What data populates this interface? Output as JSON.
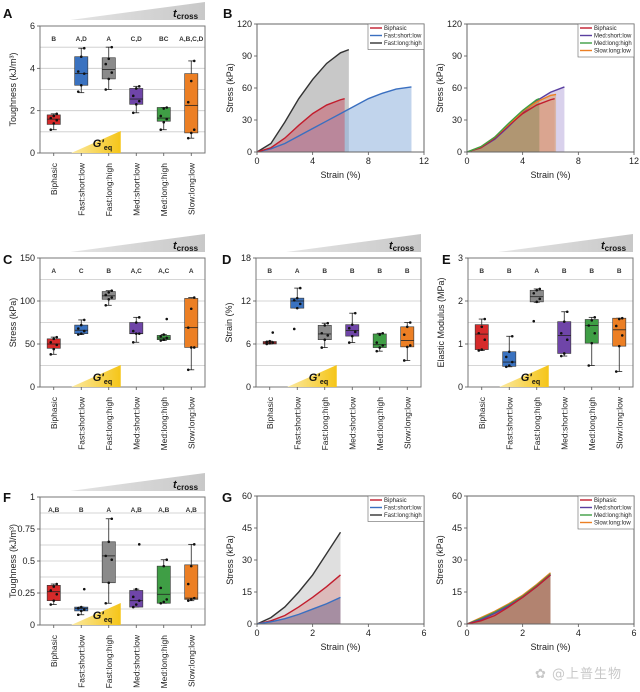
{
  "watermark": "✿ @上普生物",
  "annotations": {
    "tcross_main": "t",
    "tcross_sub": "cross",
    "geq_main": "G'",
    "geq_sub": "eq"
  },
  "colors": {
    "Biphasic": "#d62a2a",
    "Fast:short:low": "#3a72c0",
    "Fast:long:high": "#8a8a8a",
    "Med:short:low": "#6f45a8",
    "Med:long:high": "#3f9e45",
    "Slow:long:low": "#ec7f24"
  },
  "chart_data": [
    {
      "id": "A",
      "type": "box",
      "ylabel": "Toughness (kJ/m³)",
      "ylim": [
        0,
        6
      ],
      "yticks": [
        0,
        2,
        4,
        6
      ],
      "gridlines": [
        1,
        2,
        3,
        4,
        5
      ],
      "categories": [
        "Biphasic",
        "Fast:short:low",
        "Fast:long:high",
        "Med:short:low",
        "Med:long:high",
        "Slow:long:low"
      ],
      "significance": [
        "B",
        "A,D",
        "A",
        "C,D",
        "BC",
        "A,B,C,D"
      ],
      "boxes": [
        {
          "min": 1.1,
          "q1": 1.35,
          "median": 1.6,
          "q3": 1.8,
          "max": 1.85,
          "points": [
            1.1,
            1.4,
            1.55,
            1.65,
            1.75,
            1.85
          ]
        },
        {
          "min": 2.85,
          "q1": 3.2,
          "median": 3.75,
          "q3": 4.55,
          "max": 4.95,
          "points": [
            2.9,
            3.2,
            3.75,
            3.85,
            4.55,
            4.95
          ]
        },
        {
          "min": 3.0,
          "q1": 3.5,
          "median": 3.95,
          "q3": 4.5,
          "max": 5.0,
          "points": [
            3.0,
            3.5,
            3.8,
            4.2,
            4.45,
            5.0
          ]
        },
        {
          "min": 1.9,
          "q1": 2.3,
          "median": 2.55,
          "q3": 3.05,
          "max": 3.15,
          "points": [
            1.9,
            2.3,
            2.45,
            2.7,
            3.05,
            3.15
          ]
        },
        {
          "min": 1.1,
          "q1": 1.5,
          "median": 1.65,
          "q3": 2.15,
          "max": 2.15,
          "points": [
            1.1,
            1.45,
            1.6,
            1.75,
            2.1,
            2.15
          ]
        },
        {
          "min": 0.7,
          "q1": 0.95,
          "median": 2.25,
          "q3": 3.75,
          "max": 4.35,
          "points": [
            0.7,
            0.95,
            1.1,
            2.4,
            3.4,
            4.35
          ]
        }
      ]
    },
    {
      "id": "B",
      "type": "area",
      "xlabel": "Strain (%)",
      "ylabel": "Stress (kPa)",
      "xlim": [
        0,
        12
      ],
      "ylim": [
        0,
        120
      ],
      "xticks": [
        0,
        4,
        8,
        12
      ],
      "yticks": [
        0,
        30,
        60,
        90,
        120
      ],
      "legend_position": "top-right",
      "series": [
        {
          "name": "Fast:long:high",
          "color": "#333333",
          "fill": "#9a9a9a",
          "x": [
            0,
            1,
            2,
            3,
            4,
            5,
            6,
            6.6
          ],
          "y": [
            0,
            8,
            28,
            50,
            68,
            83,
            93,
            96
          ]
        },
        {
          "name": "Fast:short:low",
          "color": "#3a6fc0",
          "fill": "#8eb0dc",
          "x": [
            0,
            1,
            2,
            3,
            4,
            5,
            6,
            7,
            8,
            9,
            10,
            11.1
          ],
          "y": [
            0,
            3,
            8,
            15,
            22,
            29,
            36,
            43,
            50,
            55,
            59,
            61
          ]
        },
        {
          "name": "Biphasic",
          "color": "#c21d2d",
          "fill": "#c95c6e",
          "x": [
            0,
            1,
            2,
            3,
            4,
            5,
            6,
            6.3
          ],
          "y": [
            0,
            4,
            13,
            25,
            36,
            44,
            49,
            50
          ]
        }
      ],
      "legend": [
        "Biphasic",
        "Fast:short:low",
        "Fast:long:high"
      ]
    },
    {
      "id": "B2",
      "type": "area",
      "xlabel": "Strain (%)",
      "ylabel": "Stress (kPa)",
      "xlim": [
        0,
        12
      ],
      "ylim": [
        0,
        120
      ],
      "xticks": [
        0,
        4,
        8,
        12
      ],
      "yticks": [
        0,
        30,
        60,
        90,
        120
      ],
      "legend_position": "top-right",
      "series": [
        {
          "name": "Med:short:low",
          "color": "#5a3fa0",
          "fill": "#b9acdc",
          "x": [
            0,
            1,
            2,
            3,
            4,
            5,
            6,
            7
          ],
          "y": [
            0,
            4,
            12,
            24,
            37,
            48,
            56,
            61
          ]
        },
        {
          "name": "Biphasic",
          "color": "#c21d2d",
          "fill": "#dd8a90",
          "x": [
            0,
            1,
            2,
            3,
            4,
            5,
            6,
            6.3
          ],
          "y": [
            0,
            4,
            13,
            25,
            36,
            44,
            49,
            50
          ]
        },
        {
          "name": "Slow:long:low",
          "color": "#ec7f24",
          "fill": "#d8a070",
          "x": [
            0,
            1,
            2,
            3,
            4,
            5,
            6,
            6.4
          ],
          "y": [
            0,
            5,
            14,
            26,
            38,
            47,
            53,
            54
          ]
        },
        {
          "name": "Med:long:high",
          "color": "#3f9e45",
          "fill": "#8e8a5a",
          "x": [
            0,
            1,
            2,
            3,
            4,
            5,
            5.2
          ],
          "y": [
            0,
            5,
            14,
            27,
            39,
            49,
            50
          ]
        }
      ],
      "legend": [
        "Biphasic",
        "Med:short:low",
        "Med:long:high",
        "Slow:long:low"
      ]
    },
    {
      "id": "C",
      "type": "box",
      "ylabel": "Stress (kPa)",
      "ylim": [
        0,
        150
      ],
      "yticks": [
        0,
        50,
        100,
        150
      ],
      "gridlines": [
        25,
        50,
        75,
        100,
        125
      ],
      "categories": [
        "Biphasic",
        "Fast:short:low",
        "Fast:long:high",
        "Med:short:low",
        "Med:long:high",
        "Slow:long:low"
      ],
      "significance": [
        "A",
        "C",
        "B",
        "A,C",
        "A,C",
        "A"
      ],
      "boxes": [
        {
          "min": 38,
          "q1": 45,
          "median": 50,
          "q3": 56,
          "max": 58,
          "points": [
            38,
            44,
            49,
            52,
            56,
            58
          ]
        },
        {
          "min": 61,
          "q1": 62,
          "median": 66,
          "q3": 72,
          "max": 78,
          "points": [
            61,
            62,
            65,
            68,
            72,
            78
          ]
        },
        {
          "min": 95,
          "q1": 102,
          "median": 106,
          "q3": 111,
          "max": 112,
          "points": [
            95,
            102,
            104,
            107,
            110,
            112
          ]
        },
        {
          "min": 52,
          "q1": 62,
          "median": 62,
          "q3": 75,
          "max": 81,
          "points": [
            52,
            62,
            62,
            65,
            75,
            81
          ]
        },
        {
          "min": 54,
          "q1": 55,
          "median": 57,
          "q3": 60,
          "max": 61,
          "points": [
            54,
            55,
            57,
            59,
            61,
            79
          ]
        },
        {
          "min": 20,
          "q1": 46,
          "median": 69,
          "q3": 103,
          "max": 104,
          "points": [
            20,
            46,
            46,
            69,
            91,
            104
          ]
        }
      ]
    },
    {
      "id": "D",
      "type": "box",
      "ylabel": "Strain (%)",
      "ylim": [
        0,
        18
      ],
      "yticks": [
        0,
        6,
        12,
        18
      ],
      "gridlines": [
        3,
        6,
        9,
        12,
        15
      ],
      "categories": [
        "Biphasic",
        "Fast:short:low",
        "Fast:long:high",
        "Med:short:low",
        "Med:long:high",
        "Slow:long:low"
      ],
      "significance": [
        "B",
        "A",
        "B",
        "B",
        "B",
        "B"
      ],
      "boxes": [
        {
          "min": 6.0,
          "q1": 6.0,
          "median": 6.15,
          "q3": 6.35,
          "max": 6.4,
          "points": [
            6.0,
            6.1,
            6.2,
            6.3,
            6.4,
            7.6
          ]
        },
        {
          "min": 11.0,
          "q1": 11.0,
          "median": 12.0,
          "q3": 12.4,
          "max": 13.8,
          "points": [
            8.1,
            11.0,
            11.6,
            12.1,
            12.4,
            13.8
          ]
        },
        {
          "min": 5.5,
          "q1": 6.6,
          "median": 7.4,
          "q3": 8.6,
          "max": 8.9,
          "points": [
            5.5,
            6.6,
            7.2,
            7.5,
            8.6,
            8.9
          ]
        },
        {
          "min": 6.2,
          "q1": 7.1,
          "median": 7.9,
          "q3": 8.7,
          "max": 10.3,
          "points": [
            6.2,
            7.1,
            7.7,
            8.2,
            8.7,
            10.3
          ]
        },
        {
          "min": 5.0,
          "q1": 5.5,
          "median": 5.9,
          "q3": 7.4,
          "max": 7.5,
          "points": [
            5.0,
            5.5,
            5.8,
            6.2,
            7.3,
            7.5
          ]
        },
        {
          "min": 3.7,
          "q1": 5.6,
          "median": 6.5,
          "q3": 8.4,
          "max": 9.0,
          "points": [
            3.7,
            5.6,
            5.8,
            7.3,
            8.4,
            9.0
          ]
        }
      ]
    },
    {
      "id": "E",
      "type": "box",
      "ylabel": "Elastic Modulus (MPa)",
      "ylim": [
        0,
        3
      ],
      "yticks": [
        0,
        1,
        2,
        3
      ],
      "gridlines": [
        0.5,
        1,
        1.5,
        2,
        2.5
      ],
      "categories": [
        "Biphasic",
        "Fast:short:low",
        "Fast:long:high",
        "Med:short:low",
        "Med:long:high",
        "Slow:long:low"
      ],
      "significance": [
        "B",
        "B",
        "A",
        "B",
        "B",
        "B"
      ],
      "boxes": [
        {
          "min": 0.85,
          "q1": 0.87,
          "median": 1.23,
          "q3": 1.45,
          "max": 1.58,
          "points": [
            0.85,
            0.87,
            1.1,
            1.25,
            1.4,
            1.58
          ]
        },
        {
          "min": 0.47,
          "q1": 0.48,
          "median": 0.58,
          "q3": 0.82,
          "max": 1.18,
          "points": [
            0.47,
            0.5,
            0.58,
            0.7,
            0.82,
            1.18
          ]
        },
        {
          "min": 1.97,
          "q1": 1.98,
          "median": 2.1,
          "q3": 2.25,
          "max": 2.28,
          "points": [
            1.53,
            1.98,
            2.05,
            2.18,
            2.25,
            2.28
          ]
        },
        {
          "min": 0.72,
          "q1": 0.78,
          "median": 1.2,
          "q3": 1.52,
          "max": 1.75,
          "points": [
            0.72,
            0.78,
            1.1,
            1.25,
            1.52,
            1.75
          ]
        },
        {
          "min": 0.5,
          "q1": 1.02,
          "median": 1.43,
          "q3": 1.57,
          "max": 1.62,
          "points": [
            0.5,
            1.02,
            1.25,
            1.43,
            1.55,
            1.62
          ]
        },
        {
          "min": 0.36,
          "q1": 0.95,
          "median": 1.33,
          "q3": 1.6,
          "max": 1.6,
          "points": [
            0.36,
            0.95,
            1.2,
            1.42,
            1.58,
            1.6
          ]
        }
      ]
    },
    {
      "id": "F",
      "type": "box",
      "ylabel": "Toughness (kJ/m³)",
      "ylim": [
        0,
        1
      ],
      "yticks": [
        0,
        0.25,
        0.5,
        0.75,
        1
      ],
      "gridlines": [
        0.125,
        0.25,
        0.375,
        0.5,
        0.625,
        0.75,
        0.875
      ],
      "categories": [
        "Biphasic",
        "Fast:short:low",
        "Fast:long:high",
        "Med:short:low",
        "Med:long:high",
        "Slow:long:low"
      ],
      "significance": [
        "A,B",
        "B",
        "A",
        "A,B",
        "A,B",
        "A,B"
      ],
      "boxes": [
        {
          "min": 0.16,
          "q1": 0.19,
          "median": 0.26,
          "q3": 0.31,
          "max": 0.32,
          "points": [
            0.16,
            0.19,
            0.24,
            0.27,
            0.3,
            0.32
          ]
        },
        {
          "min": 0.08,
          "q1": 0.11,
          "median": 0.13,
          "q3": 0.14,
          "max": 0.14,
          "points": [
            0.08,
            0.11,
            0.12,
            0.13,
            0.14,
            0.28
          ]
        },
        {
          "min": 0.17,
          "q1": 0.33,
          "median": 0.54,
          "q3": 0.65,
          "max": 0.83,
          "points": [
            0.17,
            0.33,
            0.51,
            0.54,
            0.65,
            0.83
          ]
        },
        {
          "min": 0.14,
          "q1": 0.14,
          "median": 0.19,
          "q3": 0.27,
          "max": 0.28,
          "points": [
            0.14,
            0.16,
            0.19,
            0.22,
            0.28,
            0.63
          ]
        },
        {
          "min": 0.17,
          "q1": 0.17,
          "median": 0.24,
          "q3": 0.46,
          "max": 0.51,
          "points": [
            0.17,
            0.18,
            0.2,
            0.29,
            0.46,
            0.51
          ]
        },
        {
          "min": 0.19,
          "q1": 0.2,
          "median": 0.21,
          "q3": 0.47,
          "max": 0.63,
          "points": [
            0.19,
            0.2,
            0.21,
            0.32,
            0.46,
            0.63
          ]
        }
      ]
    },
    {
      "id": "G",
      "type": "area",
      "xlabel": "Strain (%)",
      "ylabel": "Stress (kPa)",
      "xlim": [
        0,
        6
      ],
      "ylim": [
        0,
        60
      ],
      "xticks": [
        0,
        2,
        4,
        6
      ],
      "yticks": [
        0,
        15,
        30,
        45,
        60
      ],
      "legend_position": "top-right",
      "series": [
        {
          "name": "Fast:long:high",
          "color": "#333333",
          "fill": "#c4c4c4",
          "x": [
            0,
            0.5,
            1,
            1.5,
            2,
            2.5,
            3
          ],
          "y": [
            0,
            3,
            8,
            15,
            23,
            33,
            43
          ]
        },
        {
          "name": "Biphasic",
          "color": "#c21d2d",
          "fill": "#d99a9a",
          "x": [
            0,
            0.5,
            1,
            1.5,
            2,
            2.5,
            3
          ],
          "y": [
            0,
            1.5,
            4,
            8,
            12.5,
            17.5,
            23
          ]
        },
        {
          "name": "Fast:short:low",
          "color": "#3a6fc0",
          "fill": "#7a6a8e",
          "x": [
            0,
            0.5,
            1,
            1.5,
            2,
            2.5,
            3
          ],
          "y": [
            0,
            1,
            2.5,
            4.5,
            7,
            9.5,
            12.5
          ]
        }
      ],
      "legend": [
        "Biphasic",
        "Fast:short:low",
        "Fast:long:high"
      ]
    },
    {
      "id": "G2",
      "type": "area",
      "xlabel": "Strain (%)",
      "ylabel": "Stress (kPa)",
      "xlim": [
        0,
        6
      ],
      "ylim": [
        0,
        60
      ],
      "xticks": [
        0,
        2,
        4,
        6
      ],
      "yticks": [
        0,
        15,
        30,
        45,
        60
      ],
      "legend_position": "top-right",
      "series": [
        {
          "name": "Slow:long:low",
          "color": "#ec7f24",
          "fill": "#c8a06a",
          "x": [
            0,
            0.5,
            1,
            1.5,
            2,
            2.5,
            3
          ],
          "y": [
            0,
            3,
            6,
            9.5,
            13.5,
            18.5,
            24
          ]
        },
        {
          "name": "Med:long:high",
          "color": "#3f9e45",
          "fill": "#a88a6a",
          "x": [
            0,
            0.5,
            1,
            1.5,
            2,
            2.5,
            3
          ],
          "y": [
            0,
            2.5,
            5.5,
            9,
            13,
            18,
            23.5
          ]
        },
        {
          "name": "Med:short:low",
          "color": "#5a3fa0",
          "fill": "#a88070",
          "x": [
            0,
            0.5,
            1,
            1.5,
            2,
            2.5,
            3
          ],
          "y": [
            0,
            2,
            5,
            8.5,
            12.5,
            17.5,
            23
          ]
        },
        {
          "name": "Biphasic",
          "color": "#c21d2d",
          "fill": "#b07868",
          "x": [
            0,
            0.5,
            1,
            1.5,
            2,
            2.5,
            3
          ],
          "y": [
            0,
            1.5,
            4,
            8,
            12.5,
            17.5,
            23
          ]
        }
      ],
      "legend": [
        "Biphasic",
        "Med:short:low",
        "Med:long:high",
        "Slow:long:low"
      ]
    }
  ]
}
